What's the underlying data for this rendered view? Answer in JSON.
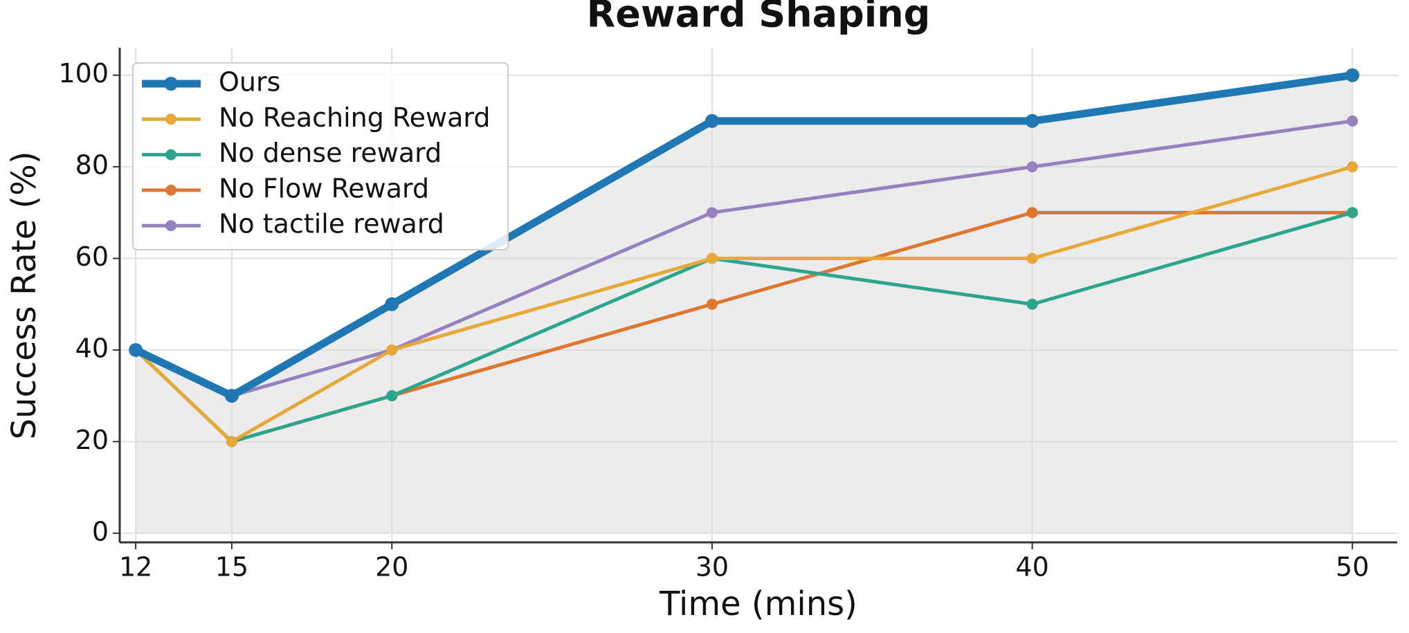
{
  "chart_data": {
    "type": "line",
    "title": "Reward Shaping",
    "x_label": "Time (mins)",
    "y_label": "Success Rate (%)",
    "x": [
      12,
      15,
      20,
      30,
      40,
      50
    ],
    "series": [
      {
        "name": "Ours",
        "color": "#1f77b4",
        "values": [
          40,
          30,
          50,
          90,
          90,
          100
        ]
      },
      {
        "name": "No Reaching Reward",
        "color": "#e8a838",
        "values": [
          40,
          20,
          40,
          60,
          60,
          80
        ]
      },
      {
        "name": "No dense reward",
        "color": "#2ca58d",
        "values": [
          40,
          20,
          30,
          60,
          50,
          70
        ]
      },
      {
        "name": "No Flow Reward",
        "color": "#dc7630",
        "values": [
          40,
          20,
          30,
          50,
          70,
          70
        ]
      },
      {
        "name": "No tactile reward",
        "color": "#9580c0",
        "values": [
          40,
          30,
          40,
          70,
          80,
          90
        ]
      }
    ],
    "xlim": [
      11.5,
      51.4
    ],
    "ylim": [
      -2,
      106
    ],
    "xticks": [
      12,
      15,
      20,
      30,
      40,
      50
    ],
    "yticks": [
      0,
      20,
      40,
      60,
      80,
      100
    ],
    "grid": true,
    "legend": "upper left"
  }
}
